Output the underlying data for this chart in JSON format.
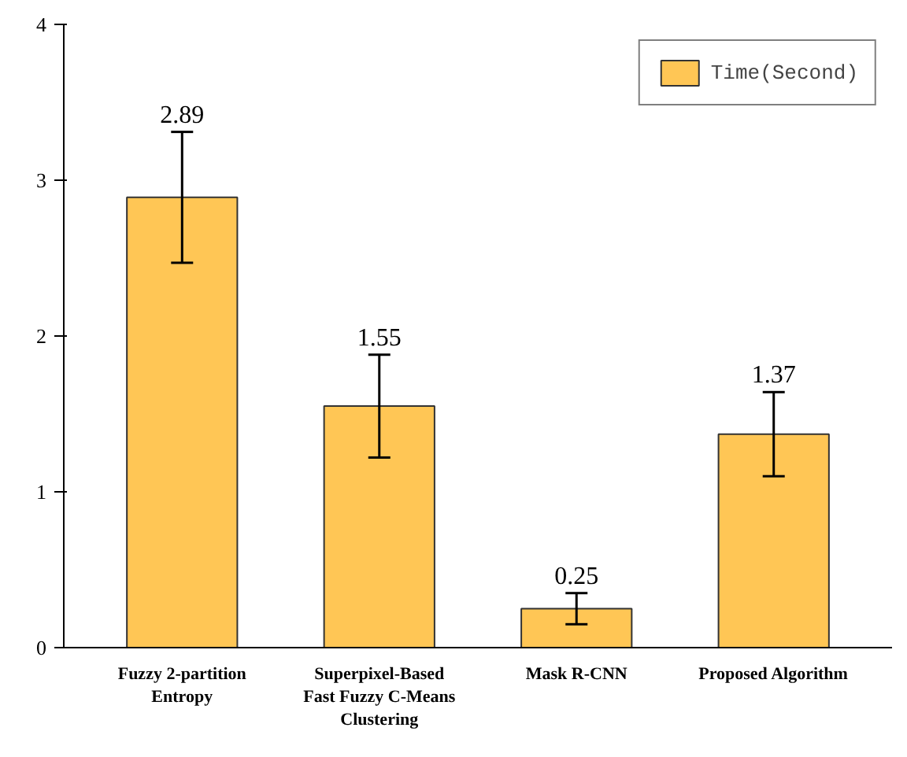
{
  "chart_data": {
    "type": "bar",
    "categories": [
      "Fuzzy 2-partition\nEntropy",
      "Superpixel-Based\nFast Fuzzy C-Means\nClustering",
      "Mask R-CNN",
      "Proposed Algorithm"
    ],
    "series": [
      {
        "name": "Time(Second)",
        "color": "#ffc655",
        "values": [
          2.89,
          1.55,
          0.25,
          1.37
        ],
        "errors": [
          0.42,
          0.33,
          0.1,
          0.27
        ]
      }
    ],
    "ylim": [
      0,
      4
    ],
    "yticks": [
      0,
      1,
      2,
      3,
      4
    ],
    "grid": false,
    "legend": "top right",
    "data_labels": true
  }
}
